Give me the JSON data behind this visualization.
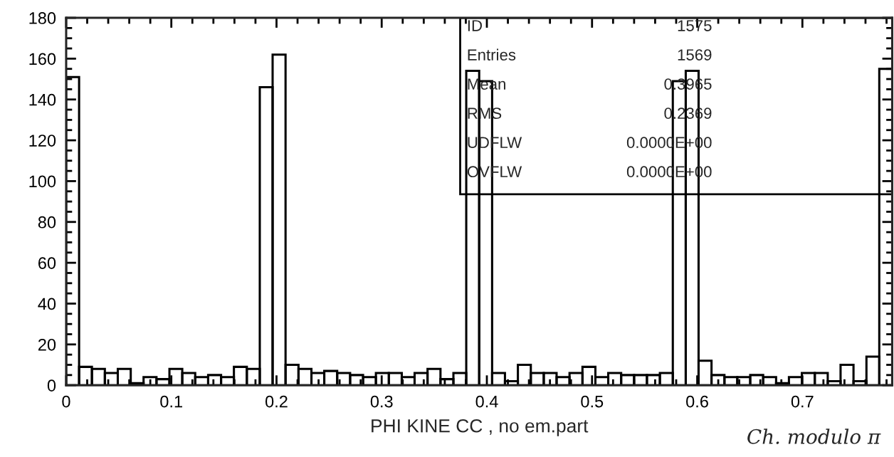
{
  "chart_data": {
    "type": "histogram",
    "xlabel": "PHI KINE CC , no em.part",
    "bins": [
      0.0,
      0.0123,
      0.0245,
      0.0368,
      0.0491,
      0.0614,
      0.0736,
      0.0859,
      0.0982,
      0.1104,
      0.1227,
      0.135,
      0.1473,
      0.1595,
      0.1718,
      0.1841,
      0.1963,
      0.2086,
      0.2209,
      0.2332,
      0.2454,
      0.2577,
      0.27,
      0.2823,
      0.2945,
      0.3068,
      0.3191,
      0.3313,
      0.3436,
      0.3559,
      0.3682,
      0.3804,
      0.3927,
      0.405,
      0.4172,
      0.4295,
      0.4418,
      0.4541,
      0.4663,
      0.4786,
      0.4909,
      0.5032,
      0.5154,
      0.5277,
      0.54,
      0.5522,
      0.5645,
      0.5768,
      0.5891,
      0.6013,
      0.6136,
      0.6259,
      0.6381,
      0.6504,
      0.6627,
      0.675,
      0.6872,
      0.6995,
      0.7118,
      0.7241,
      0.7363,
      0.7486,
      0.7609,
      0.7731,
      0.7854
    ],
    "values": [
      151,
      9,
      8,
      6,
      8,
      1,
      4,
      3,
      8,
      6,
      4,
      5,
      4,
      9,
      8,
      146,
      162,
      10,
      8,
      6,
      7,
      6,
      5,
      4,
      6,
      6,
      4,
      6,
      8,
      3,
      6,
      154,
      149,
      6,
      2,
      10,
      6,
      6,
      4,
      6,
      9,
      4,
      6,
      5,
      5,
      5,
      6,
      149,
      154,
      12,
      5,
      4,
      4,
      5,
      4,
      1,
      4,
      6,
      6,
      2,
      10,
      2,
      14,
      155
    ],
    "color": "#000000",
    "xlim": [
      0,
      0.7854
    ],
    "xticks": [
      0,
      0.1,
      0.2,
      0.3,
      0.4,
      0.5,
      0.6,
      0.7
    ],
    "ylim": [
      0,
      180
    ],
    "yticks": [
      0,
      20,
      40,
      60,
      80,
      100,
      120,
      140,
      160,
      180
    ],
    "grid": false,
    "annotations": [
      "ID",
      "1575",
      "Entries",
      "1569",
      "Mean",
      "0.3965",
      "RMS",
      "0.2369",
      "UDFLW",
      "0.0000E+00",
      "OVFLW",
      "0.0000E+00",
      "Ch. modulo π"
    ]
  }
}
